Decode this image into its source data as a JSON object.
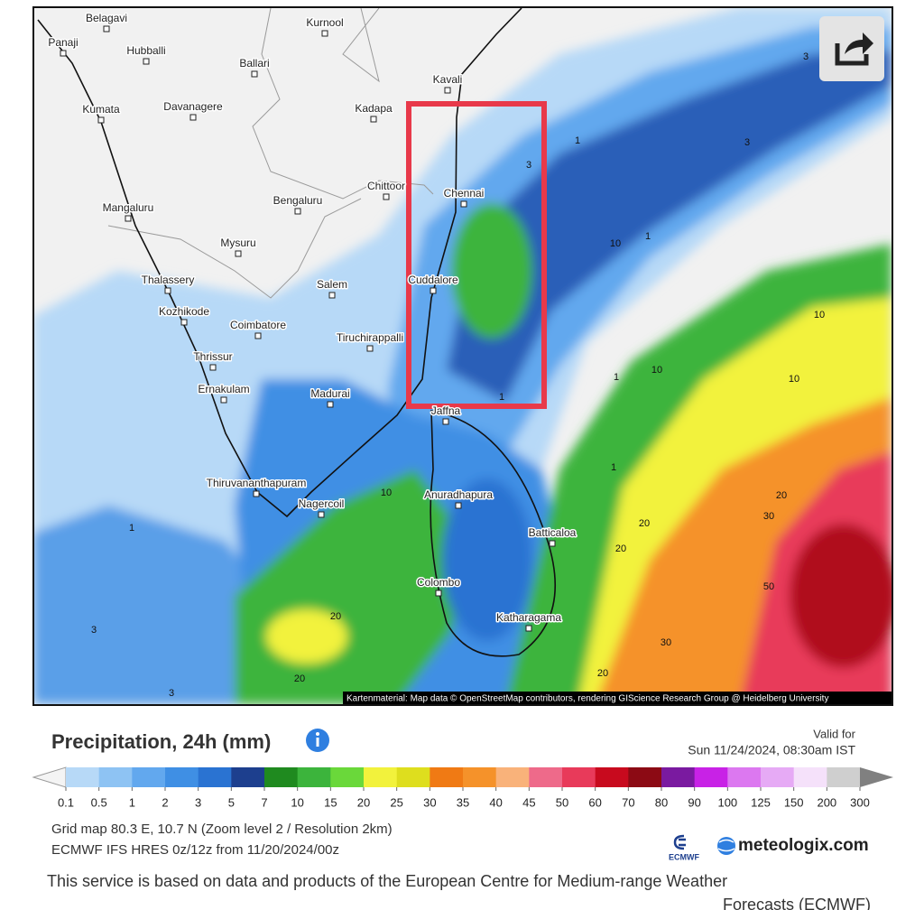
{
  "map": {
    "cities": [
      "Belagavi",
      "Kurnool",
      "Panaji",
      "Hubballi",
      "Ballari",
      "Kavali",
      "Kumata",
      "Davanagere",
      "Kadapa",
      "Chittoor",
      "Chennai",
      "Mangaluru",
      "Bengaluru",
      "Mysuru",
      "Thalassery",
      "Salem",
      "Cuddalore",
      "Kozhikode",
      "Coimbatore",
      "Tiruchirappalli",
      "Thrissur",
      "Ernakulam",
      "Madurai",
      "Jaffna",
      "Thiruvananthapuram",
      "Nagercoil",
      "Anuradhapura",
      "Batticaloa",
      "Colombo",
      "Katharagama"
    ],
    "contour_labels": [
      "3",
      "1",
      "1",
      "3",
      "3",
      "1",
      "1",
      "10",
      "10",
      "10",
      "1",
      "10",
      "20",
      "30",
      "20",
      "20",
      "50",
      "30",
      "20",
      "20",
      "20",
      "10",
      "1",
      "3",
      "3"
    ],
    "attribution": "Kartenmaterial: Map data © OpenStreetMap contributors, rendering GIScience Research Group @ Heidelberg University"
  },
  "legend": {
    "title": "Precipitation, 24h (mm)",
    "valid_for": "Valid for",
    "valid_time": "Sun 11/24/2024, 08:30am IST",
    "labels": [
      "0.1",
      "0.5",
      "1",
      "2",
      "3",
      "5",
      "7",
      "10",
      "15",
      "20",
      "25",
      "30",
      "35",
      "40",
      "45",
      "50",
      "60",
      "70",
      "80",
      "90",
      "100",
      "125",
      "150",
      "200",
      "300"
    ],
    "colors": [
      "#b7d9f7",
      "#8ec3f3",
      "#62a8ee",
      "#3f8fe4",
      "#2a73d2",
      "#1d3f8e",
      "#1f8a1f",
      "#3cb43c",
      "#6ad83a",
      "#f2f23c",
      "#dede1e",
      "#f07a14",
      "#f5922a",
      "#f9b27a",
      "#ee6a8a",
      "#e83a5a",
      "#c80a1e",
      "#8c0a14",
      "#7a1aa0",
      "#c822e6",
      "#dc78f0",
      "#e6aaf5",
      "#f5e1fa",
      "#cfcfcf"
    ]
  },
  "info": {
    "grid": "Grid map 80.3 E, 10.7 N  (Zoom level 2 / Resolution 2km)",
    "model": "ECMWF IFS HRES 0z/12z from 11/20/2024/00z",
    "ecmwf": "ECMWF",
    "brand": "meteologix.com"
  },
  "footer": {
    "line1": "This service is based on data and products of the European Centre for Medium-range Weather",
    "line2": "Forecasts (ECMWF)"
  }
}
